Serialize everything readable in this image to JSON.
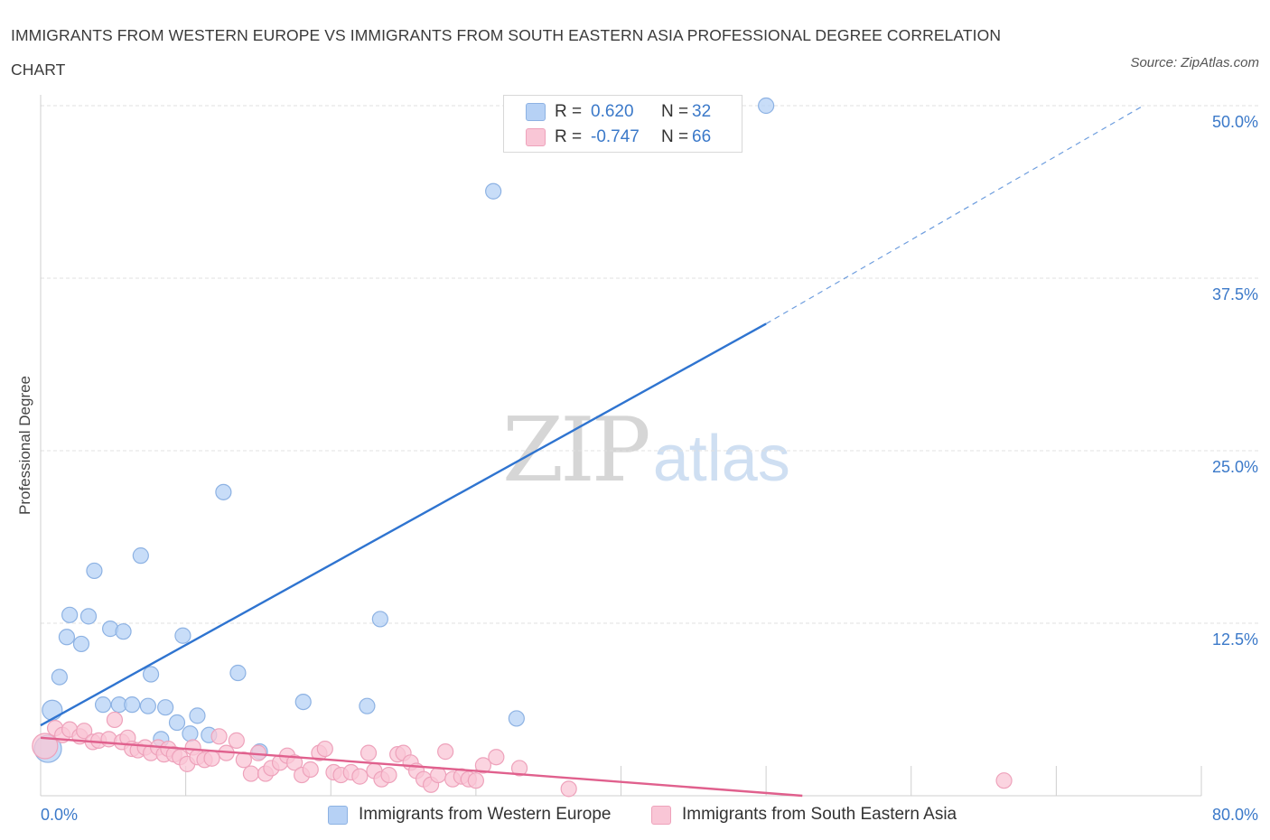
{
  "title": "IMMIGRANTS FROM WESTERN EUROPE VS IMMIGRANTS FROM SOUTH EASTERN ASIA PROFESSIONAL DEGREE CORRELATION CHART",
  "source": "Source: ZipAtlas.com",
  "watermark": {
    "zip": "ZIP",
    "atlas": "atlas"
  },
  "legend": {
    "rows": [
      {
        "r_label": "R =",
        "r_value": "0.620",
        "n_label": "N =",
        "n_value": "32",
        "color": "#b6d1f5"
      },
      {
        "r_label": "R =",
        "r_value": "-0.747",
        "n_label": "N =",
        "n_value": "66",
        "color": "#f9c6d6"
      }
    ]
  },
  "bottom_legend": [
    {
      "label": "Immigrants from Western Europe",
      "color": "#b6d1f5"
    },
    {
      "label": "Immigrants from South Eastern Asia",
      "color": "#f9c6d6"
    }
  ],
  "colors": {
    "blue_fill": "#b6d1f5",
    "blue_stroke": "#8db2e3",
    "blue_line": "#2f74d0",
    "pink_fill": "#f9c6d6",
    "pink_stroke": "#eea2bb",
    "pink_line": "#e0608d",
    "tick_text": "#3b79c9",
    "grid": "#e0e0e0"
  },
  "chart_data": {
    "type": "scatter",
    "title": "IMMIGRANTS FROM WESTERN EUROPE VS IMMIGRANTS FROM SOUTH EASTERN ASIA PROFESSIONAL DEGREE CORRELATION CHART",
    "xlabel": "",
    "ylabel": "Professional Degree",
    "xlim": [
      0,
      80
    ],
    "ylim": [
      0,
      50
    ],
    "x_tick_labels": [
      "0.0%",
      "80.0%"
    ],
    "y_ticks": [
      12.5,
      25.0,
      37.5,
      50.0
    ],
    "y_tick_labels": [
      "12.5%",
      "25.0%",
      "37.5%",
      "50.0%"
    ],
    "grid": true,
    "legend_position": "top-center",
    "series": [
      {
        "name": "Immigrants from Western Europe",
        "R": 0.62,
        "N": 32,
        "trend": {
          "x0": 0,
          "y0": 5.1,
          "x1": 50,
          "y1": 34.2,
          "dashed_to_x": 76,
          "dashed_to_y": 50
        },
        "points": [
          [
            50.0,
            50.0
          ],
          [
            31.2,
            43.8
          ],
          [
            12.6,
            22.0
          ],
          [
            6.9,
            17.4
          ],
          [
            3.7,
            16.3
          ],
          [
            2.0,
            13.1
          ],
          [
            3.3,
            13.0
          ],
          [
            4.8,
            12.1
          ],
          [
            5.7,
            11.9
          ],
          [
            9.8,
            11.6
          ],
          [
            1.8,
            11.5
          ],
          [
            2.8,
            11.0
          ],
          [
            23.4,
            12.8
          ],
          [
            7.6,
            8.8
          ],
          [
            13.6,
            8.9
          ],
          [
            1.3,
            8.6
          ],
          [
            0.8,
            6.2
          ],
          [
            5.4,
            6.6
          ],
          [
            6.3,
            6.6
          ],
          [
            7.4,
            6.5
          ],
          [
            4.3,
            6.6
          ],
          [
            8.6,
            6.4
          ],
          [
            18.1,
            6.8
          ],
          [
            22.5,
            6.5
          ],
          [
            9.4,
            5.3
          ],
          [
            10.8,
            5.8
          ],
          [
            32.8,
            5.6
          ],
          [
            8.3,
            4.1
          ],
          [
            10.3,
            4.5
          ],
          [
            11.6,
            4.4
          ],
          [
            15.1,
            3.2
          ],
          [
            0.5,
            3.4
          ]
        ]
      },
      {
        "name": "Immigrants from South Eastern Asia",
        "R": -0.747,
        "N": 66,
        "trend": {
          "x0": 0,
          "y0": 4.2,
          "x1": 52.5,
          "y1": 0.0
        },
        "points": [
          [
            0.3,
            3.6
          ],
          [
            1.0,
            4.9
          ],
          [
            1.5,
            4.4
          ],
          [
            2.0,
            4.8
          ],
          [
            2.7,
            4.3
          ],
          [
            3.0,
            4.7
          ],
          [
            3.6,
            3.9
          ],
          [
            4.0,
            4.0
          ],
          [
            4.7,
            4.1
          ],
          [
            5.1,
            5.5
          ],
          [
            5.6,
            3.9
          ],
          [
            6.0,
            4.2
          ],
          [
            6.3,
            3.4
          ],
          [
            6.7,
            3.3
          ],
          [
            7.2,
            3.5
          ],
          [
            7.6,
            3.1
          ],
          [
            8.1,
            3.5
          ],
          [
            8.5,
            3.0
          ],
          [
            8.8,
            3.4
          ],
          [
            9.2,
            3.0
          ],
          [
            9.6,
            2.8
          ],
          [
            10.1,
            2.3
          ],
          [
            10.5,
            3.5
          ],
          [
            10.8,
            2.8
          ],
          [
            11.3,
            2.6
          ],
          [
            11.8,
            2.7
          ],
          [
            12.3,
            4.3
          ],
          [
            12.8,
            3.1
          ],
          [
            13.5,
            4.0
          ],
          [
            14.0,
            2.6
          ],
          [
            14.5,
            1.6
          ],
          [
            15.0,
            3.1
          ],
          [
            15.5,
            1.6
          ],
          [
            15.9,
            2.0
          ],
          [
            16.5,
            2.4
          ],
          [
            17.0,
            2.9
          ],
          [
            17.5,
            2.4
          ],
          [
            18.0,
            1.5
          ],
          [
            18.6,
            1.9
          ],
          [
            19.2,
            3.1
          ],
          [
            19.6,
            3.4
          ],
          [
            20.2,
            1.7
          ],
          [
            20.7,
            1.5
          ],
          [
            21.4,
            1.7
          ],
          [
            22.0,
            1.4
          ],
          [
            22.6,
            3.1
          ],
          [
            23.0,
            1.8
          ],
          [
            23.5,
            1.2
          ],
          [
            24.0,
            1.5
          ],
          [
            24.6,
            3.0
          ],
          [
            25.0,
            3.1
          ],
          [
            25.5,
            2.4
          ],
          [
            25.9,
            1.8
          ],
          [
            26.4,
            1.2
          ],
          [
            26.9,
            0.8
          ],
          [
            27.4,
            1.5
          ],
          [
            27.9,
            3.2
          ],
          [
            28.4,
            1.2
          ],
          [
            29.0,
            1.4
          ],
          [
            29.5,
            1.2
          ],
          [
            30.0,
            1.1
          ],
          [
            30.5,
            2.2
          ],
          [
            31.4,
            2.8
          ],
          [
            33.0,
            2.0
          ],
          [
            36.4,
            0.5
          ],
          [
            66.4,
            1.1
          ]
        ]
      }
    ]
  }
}
